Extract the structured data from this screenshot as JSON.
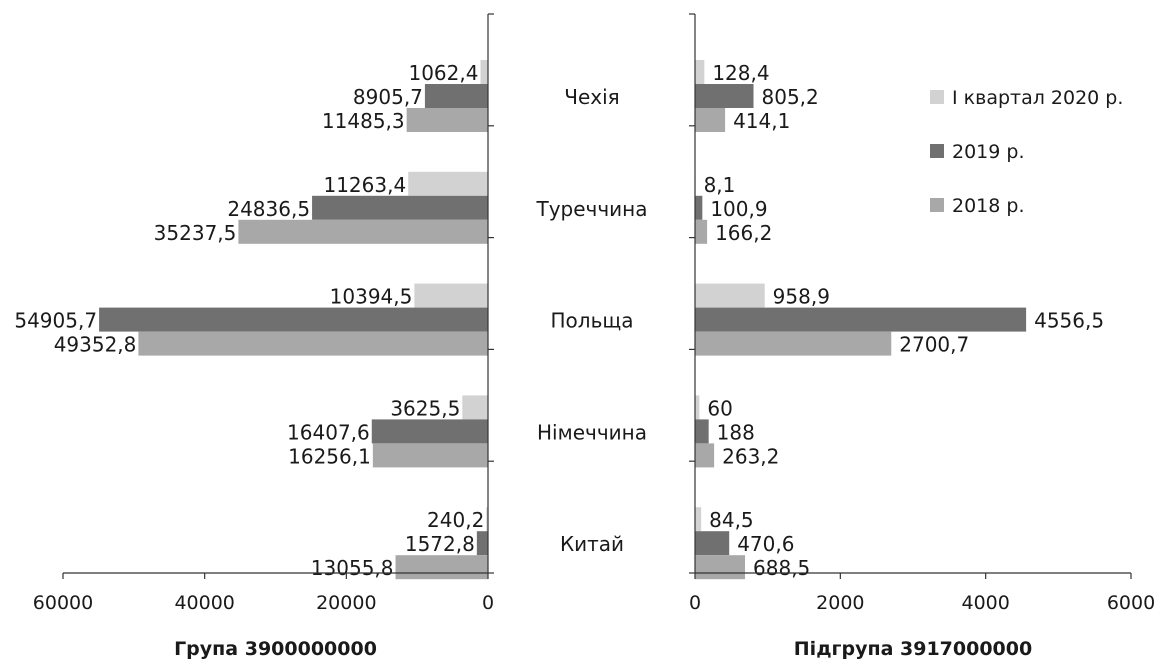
{
  "categories": [
    "Чехія",
    "Туреччина",
    "Польща",
    "Німеччина",
    "Китай"
  ],
  "series_names": [
    "I квартал 2020 р.",
    "2019 р.",
    "2018 р."
  ],
  "colors": [
    "#d2d2d2",
    "#707070",
    "#a8a8a8"
  ],
  "chart_data": [
    {
      "type": "bar",
      "orientation": "horizontal",
      "reversed_x": true,
      "xlabel": "Група 3900000000",
      "xlim": [
        0,
        60000
      ],
      "xticks": [
        60000,
        40000,
        20000,
        0
      ],
      "categories": [
        "Чехія",
        "Туреччина",
        "Польща",
        "Німеччина",
        "Китай"
      ],
      "series": [
        {
          "name": "I квартал 2020 р.",
          "values": [
            1062.4,
            11263.4,
            10394.5,
            3625.5,
            240.2
          ],
          "labels": [
            "1062,4",
            "11263,4",
            "10394,5",
            "3625,5",
            "240,2"
          ]
        },
        {
          "name": "2019 р.",
          "values": [
            8905.7,
            24836.5,
            54905.7,
            16407.6,
            1572.8
          ],
          "labels": [
            "8905,7",
            "24836,5",
            "54905,7",
            "16407,6",
            "1572,8"
          ]
        },
        {
          "name": "2018 р.",
          "values": [
            11485.3,
            35237.5,
            49352.8,
            16256.1,
            13055.8
          ],
          "labels": [
            "11485,3",
            "35237,5",
            "49352,8",
            "16256,1",
            "13055,8"
          ]
        }
      ]
    },
    {
      "type": "bar",
      "orientation": "horizontal",
      "xlabel": "Підгрупа 3917000000",
      "xlim": [
        0,
        6000
      ],
      "xticks": [
        0,
        2000,
        4000,
        6000
      ],
      "categories": [
        "Чехія",
        "Туреччина",
        "Польща",
        "Німеччина",
        "Китай"
      ],
      "series": [
        {
          "name": "I квартал 2020 р.",
          "values": [
            128.4,
            8.1,
            958.9,
            60,
            84.5
          ],
          "labels": [
            "128,4",
            "8,1",
            "958,9",
            "60",
            "84,5"
          ]
        },
        {
          "name": "2019 р.",
          "values": [
            805.2,
            100.9,
            4556.5,
            188,
            470.6
          ],
          "labels": [
            "805,2",
            "100,9",
            "4556,5",
            "188",
            "470,6"
          ]
        },
        {
          "name": "2018 р.",
          "values": [
            414.1,
            166.2,
            2700.7,
            263.2,
            688.5
          ],
          "labels": [
            "414,1",
            "166,2",
            "2700,7",
            "263,2",
            "688,5"
          ]
        }
      ],
      "legend": "right"
    }
  ]
}
